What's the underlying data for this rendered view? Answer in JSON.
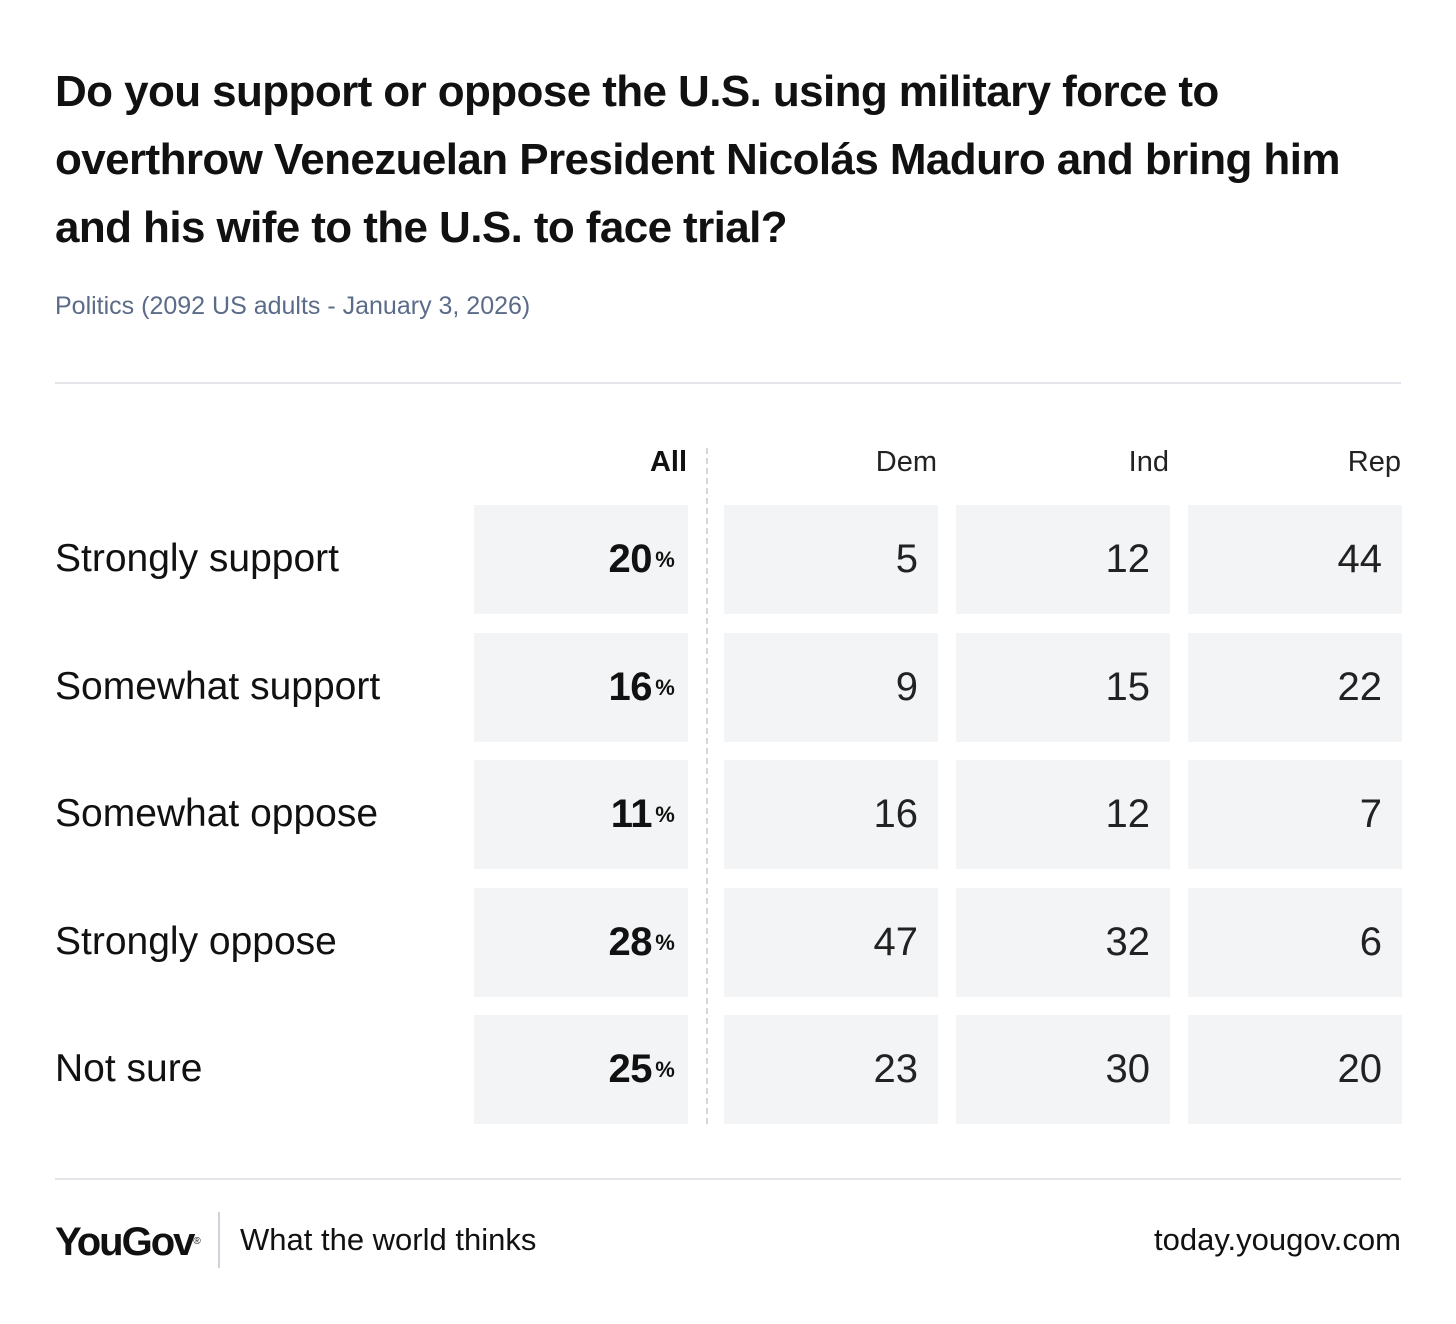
{
  "chart_data": {
    "type": "table",
    "title": "Do you support or oppose the U.S. using military force to overthrow Venezuelan President Nicolás Maduro and bring him and his wife to the U.S. to face trial?",
    "subtitle": "Politics (2092 US adults - January 3, 2026)",
    "columns": [
      "All",
      "Dem",
      "Ind",
      "Rep"
    ],
    "unit": "%",
    "rows": [
      {
        "label": "Strongly support",
        "values": [
          20,
          5,
          12,
          44
        ]
      },
      {
        "label": "Somewhat support",
        "values": [
          16,
          9,
          15,
          22
        ]
      },
      {
        "label": "Somewhat oppose",
        "values": [
          11,
          16,
          12,
          7
        ]
      },
      {
        "label": "Strongly oppose",
        "values": [
          28,
          47,
          32,
          6
        ]
      },
      {
        "label": "Not sure",
        "values": [
          25,
          23,
          30,
          20
        ]
      }
    ]
  },
  "footer": {
    "brand": "YouGov",
    "brand_mark": "®",
    "tagline": "What the world thinks",
    "url": "today.yougov.com"
  },
  "colors": {
    "cell_bg": "#f3f4f6",
    "subtitle": "#5b6b88",
    "rule": "#e3e5ea"
  }
}
